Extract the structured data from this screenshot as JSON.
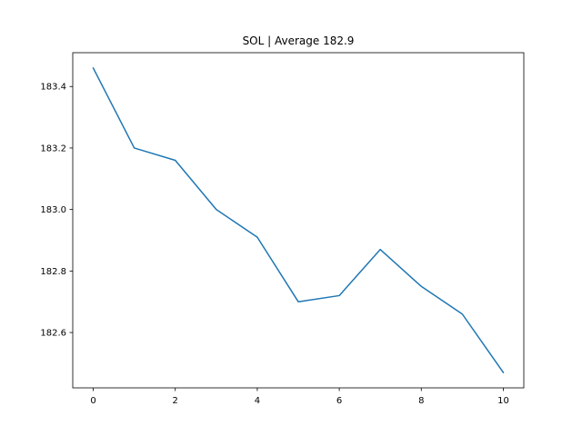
{
  "chart_data": {
    "type": "line",
    "title": "SOL | Average 182.9",
    "xlabel": "",
    "ylabel": "",
    "x": [
      0,
      1,
      2,
      3,
      4,
      5,
      6,
      7,
      8,
      9,
      10
    ],
    "series": [
      {
        "values": [
          183.46,
          183.2,
          183.16,
          183.0,
          182.91,
          182.7,
          182.72,
          182.87,
          182.75,
          182.66,
          182.47
        ],
        "color": "#1f77b4"
      }
    ],
    "xlim": [
      -0.5,
      10.5
    ],
    "ylim": [
      182.42,
      183.51
    ],
    "xticks": [
      0,
      2,
      4,
      6,
      8,
      10
    ],
    "xtick_labels": [
      "0",
      "2",
      "4",
      "6",
      "8",
      "10"
    ],
    "yticks": [
      182.6,
      182.8,
      183.0,
      183.2,
      183.4
    ],
    "ytick_labels": [
      "182.6",
      "182.8",
      "183.0",
      "183.2",
      "183.4"
    ],
    "grid": false,
    "legend": "none"
  }
}
